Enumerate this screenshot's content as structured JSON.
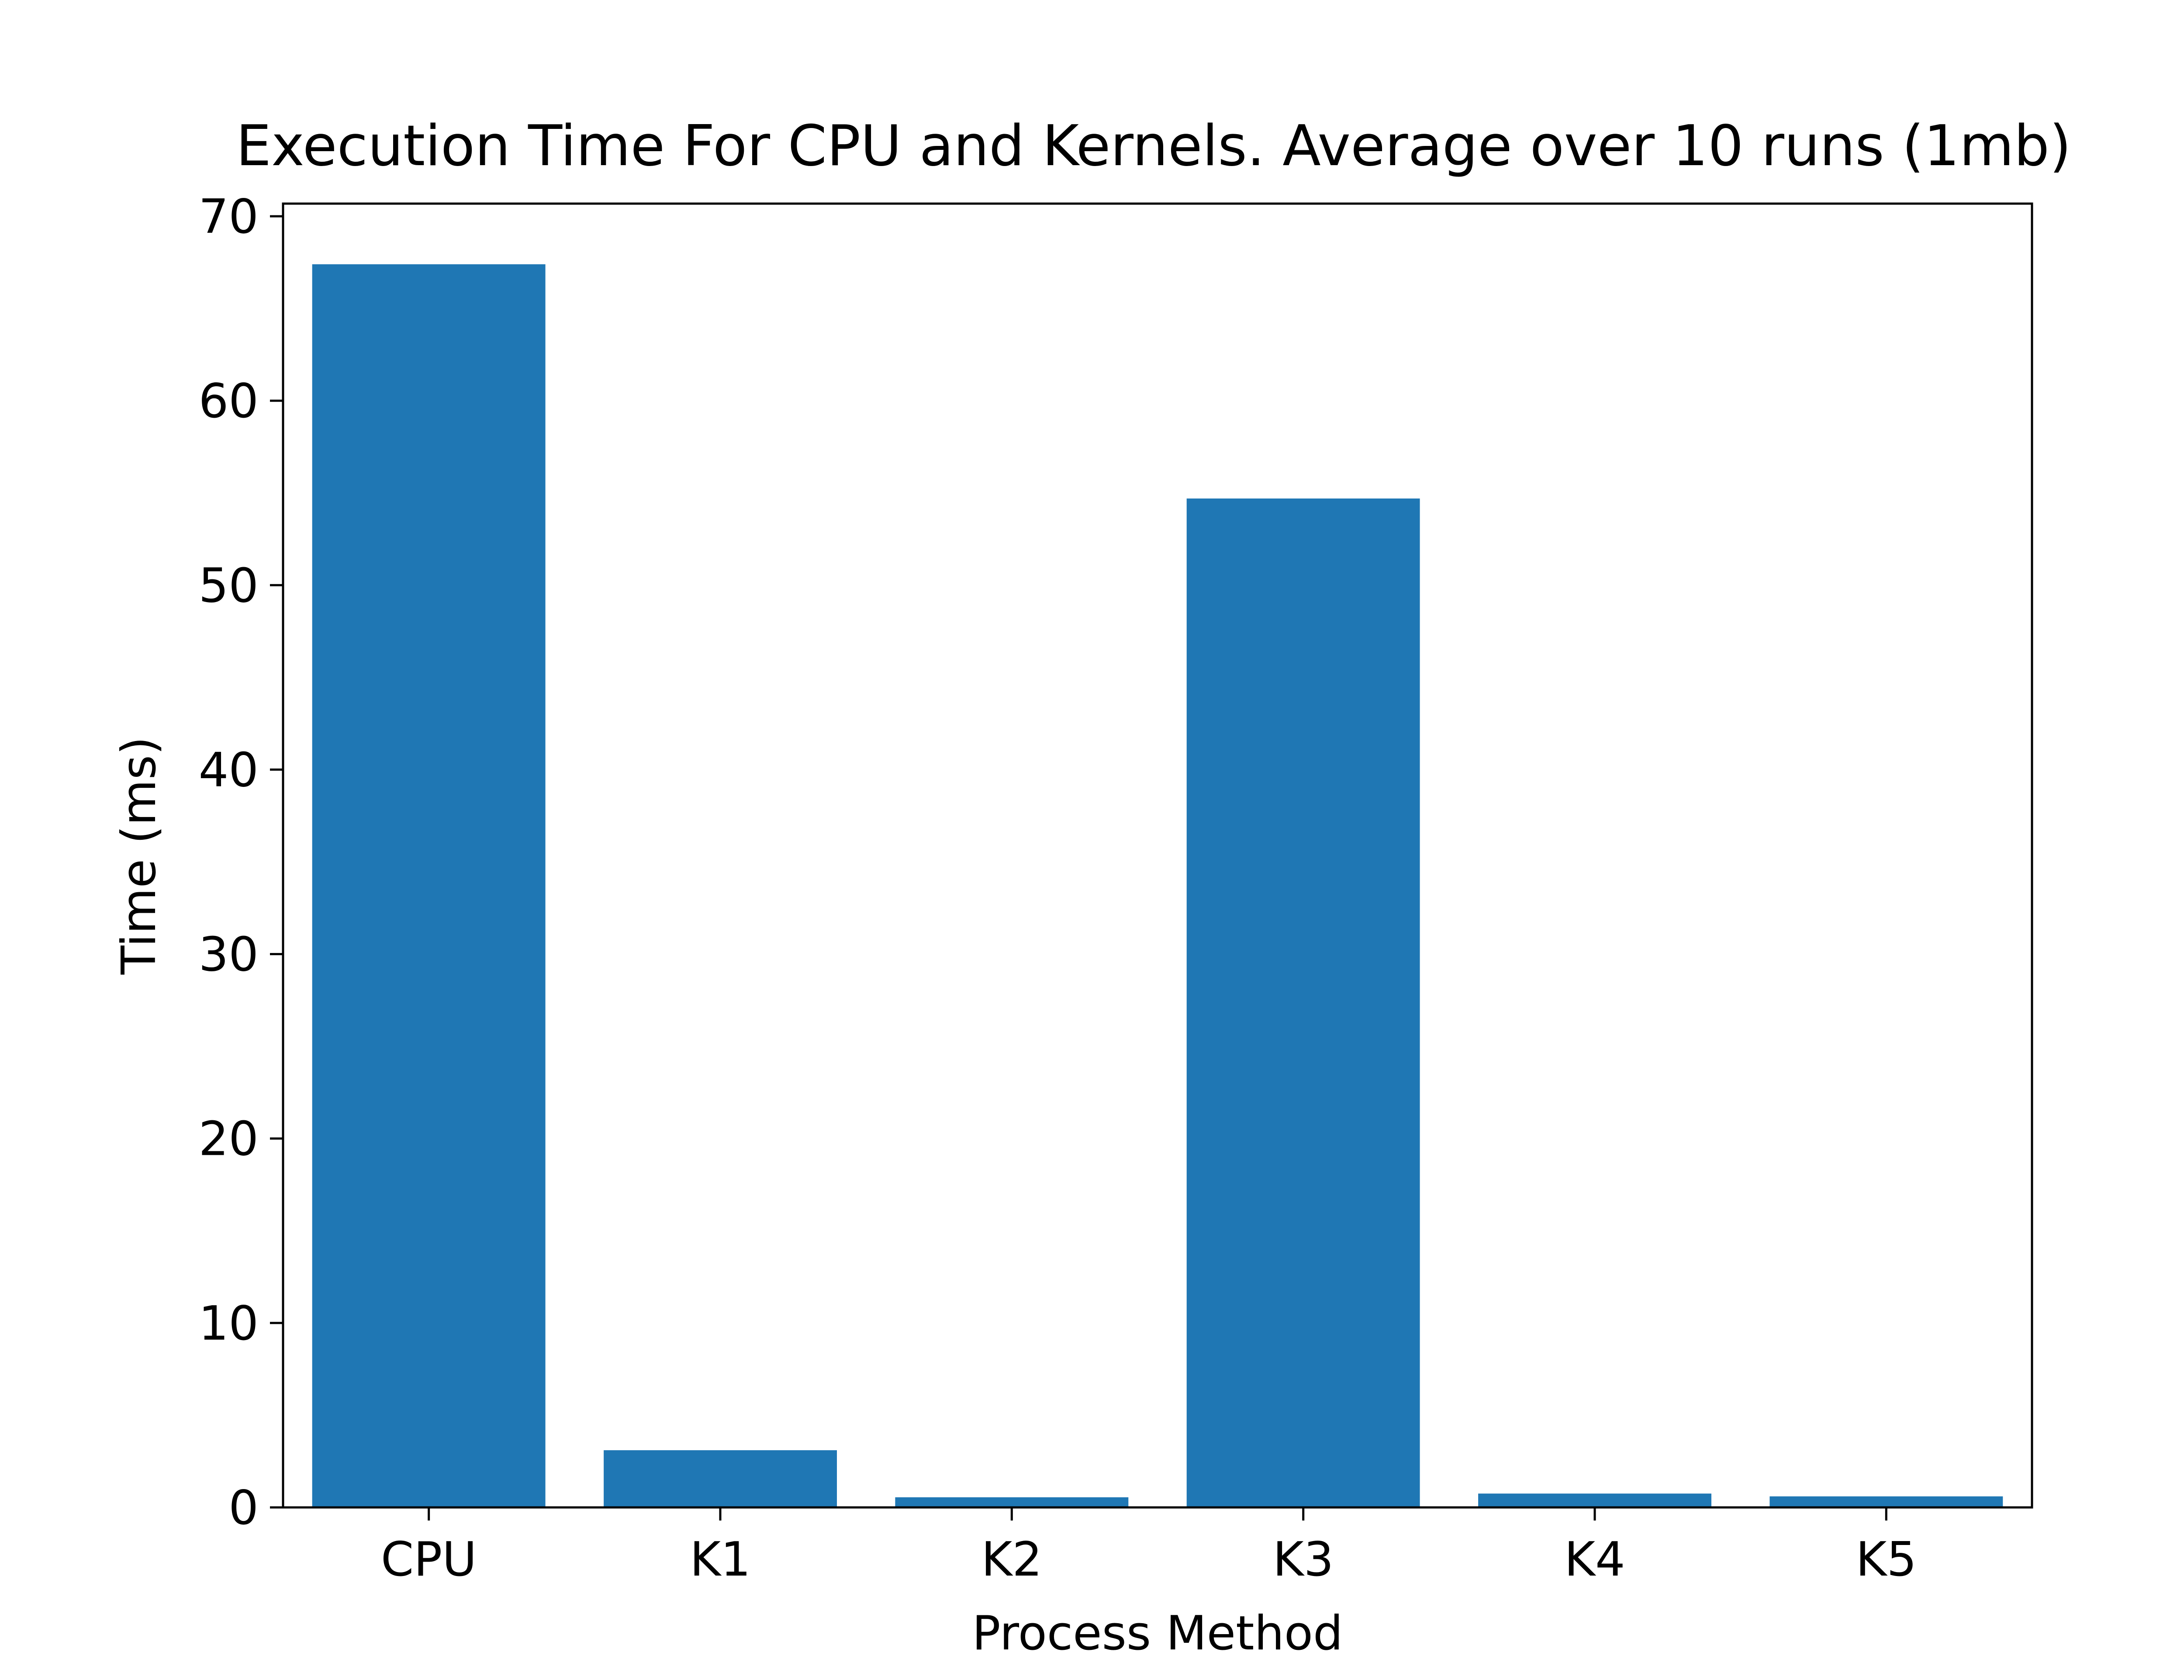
{
  "chart_data": {
    "type": "bar",
    "title": "Execution Time For CPU and Kernels. Average over 10 runs (1mb)",
    "xlabel": "Process Method",
    "ylabel": "Time (ms)",
    "categories": [
      "CPU",
      "K1",
      "K2",
      "K3",
      "K4",
      "K5"
    ],
    "values": [
      67.4,
      3.1,
      0.55,
      54.7,
      0.75,
      0.6
    ],
    "ylim": [
      0,
      70
    ],
    "yticks": [
      "0",
      "10",
      "20",
      "30",
      "40",
      "50",
      "60",
      "70"
    ],
    "grid": false,
    "legend": "none",
    "bar_color": "#1f77b4"
  }
}
